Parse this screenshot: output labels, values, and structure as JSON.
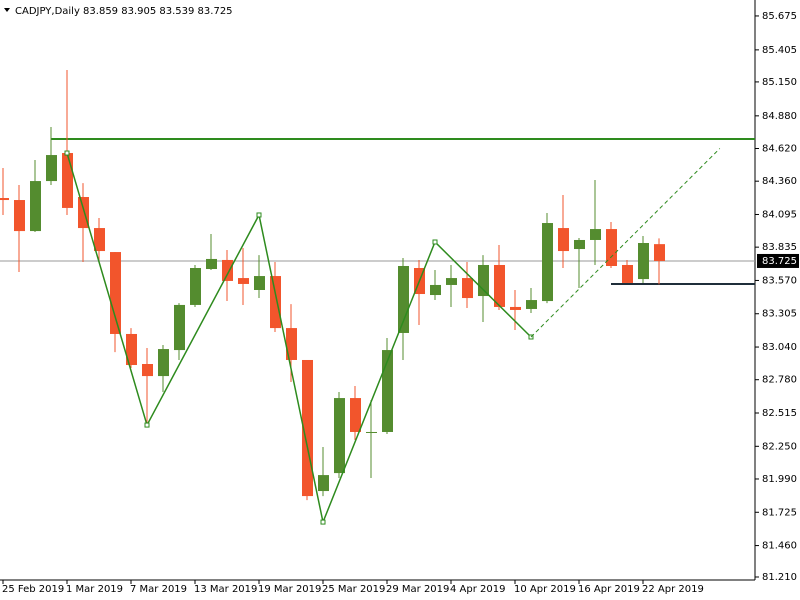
{
  "chart_data": {
    "type": "candlestick",
    "title": "CADJPY,Daily  83.859 83.905 83.539 83.725",
    "categories": [
      "25 Feb 2019",
      null,
      null,
      null,
      "1 Mar 2019",
      null,
      null,
      null,
      "7 Mar 2019",
      null,
      null,
      null,
      "13 Mar 2019",
      null,
      null,
      null,
      "19 Mar 2019",
      null,
      null,
      null,
      "25 Mar 2019",
      null,
      null,
      null,
      "29 Mar 2019",
      null,
      null,
      null,
      "4 Apr 2019",
      null,
      null,
      null,
      "10 Apr 2019",
      null,
      null,
      null,
      "16 Apr 2019",
      null,
      null,
      null,
      "22 Apr 2019",
      null
    ],
    "open": [
      84.226,
      84.21,
      83.963,
      84.361,
      84.584,
      84.234,
      83.987,
      83.796,
      83.144,
      82.905,
      82.809,
      83.016,
      83.375,
      83.661,
      83.733,
      83.589,
      83.494,
      83.605,
      83.191,
      82.937,
      81.894,
      82.037,
      82.634,
      82.356,
      82.364,
      83.152,
      83.669,
      83.454,
      83.534,
      83.589,
      83.446,
      83.693,
      83.359,
      83.343,
      83.406,
      83.987,
      83.82,
      83.892,
      83.979,
      83.693,
      83.581,
      83.859
    ],
    "high": [
      84.465,
      84.33,
      84.529,
      84.791,
      85.245,
      84.345,
      84.067,
      83.796,
      83.191,
      83.032,
      83.056,
      83.39,
      83.693,
      83.94,
      83.812,
      83.828,
      83.772,
      83.717,
      83.382,
      82.937,
      82.244,
      82.682,
      82.73,
      82.618,
      83.112,
      83.749,
      83.733,
      83.653,
      83.693,
      83.717,
      83.772,
      83.852,
      83.494,
      83.51,
      84.107,
      84.25,
      83.908,
      84.369,
      84.035,
      83.733,
      83.924,
      83.905
    ],
    "low": [
      84.091,
      83.637,
      83.956,
      84.33,
      84.091,
      83.717,
      83.709,
      83.0,
      82.873,
      82.419,
      82.682,
      82.937,
      83.359,
      83.653,
      83.406,
      83.375,
      83.43,
      83.16,
      82.762,
      81.822,
      81.854,
      81.998,
      82.3,
      81.998,
      82.348,
      82.937,
      83.215,
      83.414,
      83.359,
      83.351,
      83.239,
      83.335,
      83.176,
      83.311,
      83.39,
      83.669,
      83.51,
      83.693,
      83.669,
      83.55,
      83.55,
      83.539
    ],
    "close": [
      84.21,
      83.963,
      84.361,
      84.568,
      84.147,
      83.987,
      83.804,
      83.144,
      82.897,
      82.809,
      83.024,
      83.375,
      83.669,
      83.741,
      83.566,
      83.542,
      83.605,
      83.191,
      82.937,
      81.854,
      82.021,
      82.634,
      82.364,
      82.364,
      83.016,
      83.685,
      83.462,
      83.534,
      83.589,
      83.43,
      83.693,
      83.359,
      83.335,
      83.414,
      84.027,
      83.804,
      83.892,
      83.979,
      83.685,
      83.55,
      83.868,
      83.725
    ],
    "up_color": "#548c2f",
    "down_color": "#f2552c",
    "ylim": [
      81.186,
      85.786
    ],
    "yticks": [
      85.675,
      85.405,
      {
        "value": 85.15,
        "label": "85.150"
      },
      {
        "value": 84.88,
        "label": "84.880"
      },
      {
        "value": 84.62,
        "label": "84.620"
      },
      {
        "value": 84.36,
        "label": "84.360"
      },
      84.095,
      83.835,
      {
        "value": 83.57,
        "label": "83.570"
      },
      83.305,
      {
        "value": 83.04,
        "label": "83.040"
      },
      {
        "value": 82.78,
        "label": "82.780"
      },
      82.515,
      {
        "value": 82.25,
        "label": "82.250"
      },
      {
        "value": 81.99,
        "label": "81.990"
      },
      81.725,
      {
        "value": 81.46,
        "label": "81.460"
      },
      {
        "value": 81.21,
        "label": "81.210"
      }
    ],
    "current_price": 83.725,
    "hlines": [
      {
        "value": 84.696,
        "from": 3,
        "color": "#2e8b1e"
      },
      {
        "value": 83.542,
        "from": 38,
        "color": "#1f2e3a"
      }
    ],
    "zigzag": {
      "x": [
        4,
        9,
        16,
        20,
        27,
        33
      ],
      "values": [
        84.584,
        82.419,
        84.091,
        81.647,
        83.876,
        83.12
      ],
      "color": "#2e8b1e"
    },
    "trendline": {
      "x": [
        33,
        44.8
      ],
      "values": [
        83.12,
        84.62
      ],
      "color": "#2e8b1e"
    }
  }
}
